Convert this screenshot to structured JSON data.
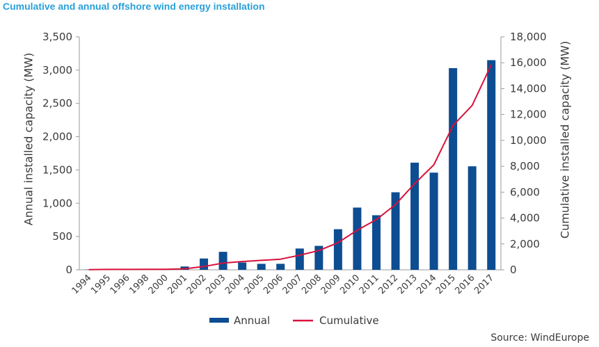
{
  "header": {
    "title": "Cumulative and annual offshore wind energy installation"
  },
  "footer": {
    "source": "Source: WindEurope"
  },
  "colors": {
    "title": "#2aa0d8",
    "bar": "#0d4d92",
    "line": "#d9113a",
    "axis": "#9a9a9a"
  },
  "chart_data": {
    "type": "bar",
    "categories": [
      "1994",
      "1995",
      "1996",
      "1998",
      "2000",
      "2001",
      "2002",
      "2003",
      "2004",
      "2005",
      "2006",
      "2007",
      "2008",
      "2009",
      "2010",
      "2011",
      "2012",
      "2013",
      "2014",
      "2015",
      "2016",
      "2017"
    ],
    "series": [
      {
        "name": "Annual",
        "type": "bar",
        "axis": "left",
        "values": [
          5,
          0,
          0,
          0,
          0,
          50,
          170,
          270,
          110,
          90,
          90,
          320,
          360,
          610,
          935,
          820,
          1165,
          1610,
          1460,
          3030,
          1555,
          3150
        ]
      },
      {
        "name": "Cumulative",
        "type": "line",
        "axis": "right",
        "values": [
          10,
          30,
          30,
          35,
          40,
          80,
          250,
          520,
          640,
          730,
          820,
          1130,
          1490,
          2100,
          3060,
          3880,
          5045,
          6655,
          8115,
          11145,
          12700,
          15850
        ]
      }
    ],
    "y_left": {
      "label": "Annual installed capacity (MW)",
      "min": 0,
      "max": 3500,
      "ticks": [
        "0",
        "500",
        "1,000",
        "1,500",
        "2,000",
        "2,500",
        "3,000",
        "3,500"
      ]
    },
    "y_right": {
      "label": "Cumulative installed capacity (MW)",
      "min": 0,
      "max": 18000,
      "ticks": [
        "0",
        "2,000",
        "4,000",
        "6,000",
        "8,000",
        "10,000",
        "12,000",
        "14,000",
        "16,000",
        "18,000"
      ]
    },
    "grid": false,
    "legend": {
      "position": "bottom",
      "entries": [
        "Annual",
        "Cumulative"
      ]
    }
  }
}
